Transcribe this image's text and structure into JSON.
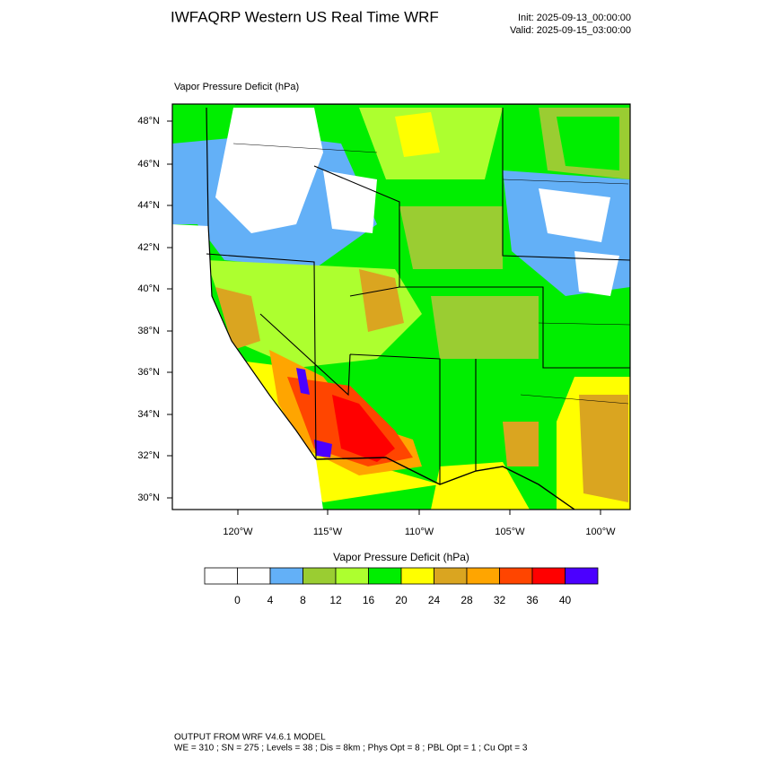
{
  "header": {
    "title": "IWFAQRP Western US Real Time WRF",
    "init": "Init: 2025-09-13_00:00:00",
    "valid": "Valid: 2025-09-15_03:00:00"
  },
  "map": {
    "title": "Vapor Pressure Deficit   (hPa)",
    "lat_labels": [
      "48°N",
      "46°N",
      "44°N",
      "42°N",
      "40°N",
      "38°N",
      "36°N",
      "34°N",
      "32°N",
      "30°N"
    ],
    "lon_labels": [
      "120°W",
      "115°W",
      "110°W",
      "105°W",
      "100°W"
    ]
  },
  "colorbar": {
    "title": "Vapor Pressure Deficit  (hPa)",
    "levels": [
      0,
      4,
      8,
      12,
      16,
      20,
      24,
      28,
      32,
      36,
      40
    ],
    "colors": [
      "#ffffff",
      "#ffffff",
      "#63b0f7",
      "#9acd32",
      "#adff2f",
      "#00ee00",
      "#ffff00",
      "#daa520",
      "#ffa500",
      "#ff4500",
      "#ff0000",
      "#4b00ff"
    ]
  },
  "footer": {
    "line1": "OUTPUT FROM WRF V4.6.1 MODEL",
    "line2": "WE = 310 ; SN = 275 ; Levels = 38 ; Dis = 8km ; Phys Opt = 8 ; PBL Opt = 1 ; Cu Opt = 3"
  }
}
